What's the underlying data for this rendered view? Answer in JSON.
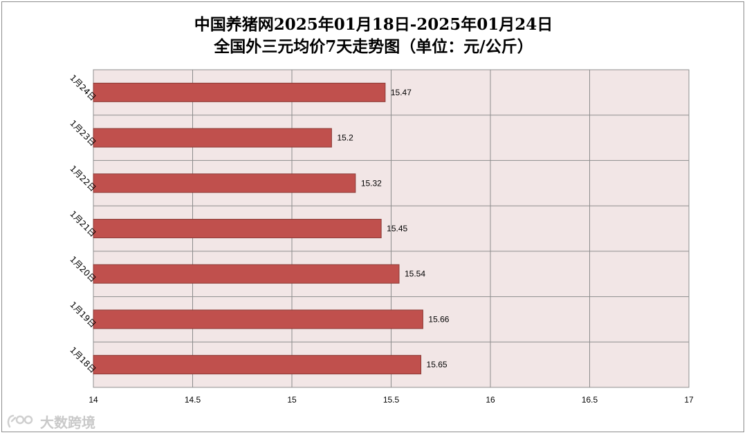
{
  "chart_data": {
    "type": "bar",
    "orientation": "horizontal",
    "title": "中国养猪网2025年01月18日-2025年01月24日",
    "subtitle": "全国外三元均价7天走势图（单位：元/公斤）",
    "categories": [
      "1月24日",
      "1月23日",
      "1月22日",
      "1月21日",
      "1月20日",
      "1月19日",
      "1月18日"
    ],
    "values": [
      15.47,
      15.2,
      15.32,
      15.45,
      15.54,
      15.66,
      15.65
    ],
    "value_labels": [
      "15.47",
      "15.2",
      "15.32",
      "15.45",
      "15.54",
      "15.66",
      "15.65"
    ],
    "xlim": [
      14,
      17
    ],
    "xticks": [
      14,
      14.5,
      15,
      15.5,
      16,
      16.5,
      17
    ],
    "xtick_labels": [
      "14",
      "14.5",
      "15",
      "15.5",
      "16",
      "16.5",
      "17"
    ],
    "grid": true,
    "bar_color": "#C0504D",
    "plot_background": "#F2E6E6"
  },
  "watermark": {
    "text": "大数跨境",
    "icon": "logo-icon"
  }
}
